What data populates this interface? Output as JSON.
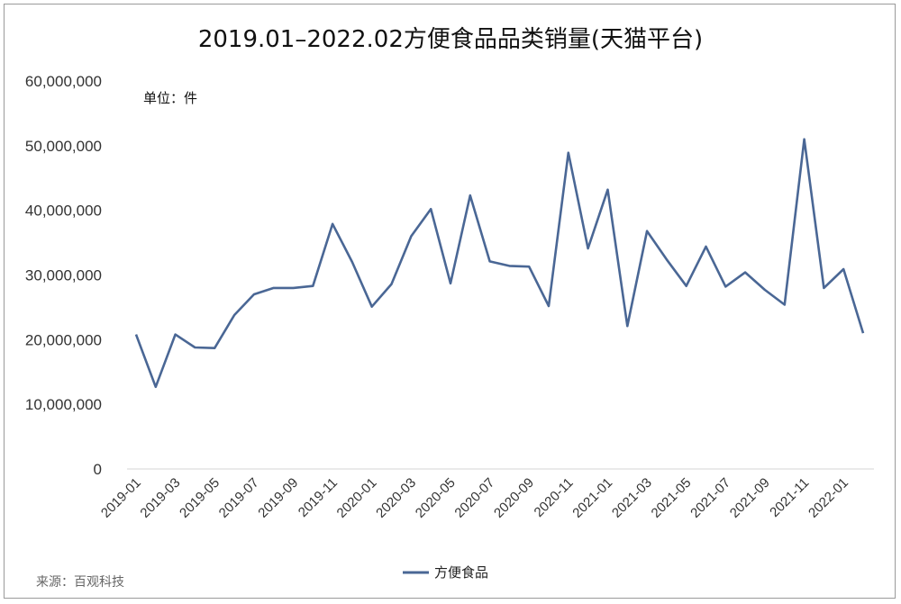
{
  "chart_data": {
    "type": "line",
    "title": "2019.01–2022.02方便食品品类销量(天猫平台)",
    "unit_label": "单位：件",
    "source": "来源：百观科技",
    "xlabel": "",
    "ylabel": "",
    "ylim": [
      0,
      60000000
    ],
    "y_ticks": [
      0,
      10000000,
      20000000,
      30000000,
      40000000,
      50000000,
      60000000
    ],
    "y_tick_labels": [
      "0",
      "10,000,000",
      "20,000,000",
      "30,000,000",
      "40,000,000",
      "50,000,000",
      "60,000,000"
    ],
    "x": [
      "2019-01",
      "2019-02",
      "2019-03",
      "2019-04",
      "2019-05",
      "2019-06",
      "2019-07",
      "2019-08",
      "2019-09",
      "2019-10",
      "2019-11",
      "2019-12",
      "2020-01",
      "2020-02",
      "2020-03",
      "2020-04",
      "2020-05",
      "2020-06",
      "2020-07",
      "2020-08",
      "2020-09",
      "2020-10",
      "2020-11",
      "2020-12",
      "2021-01",
      "2021-02",
      "2021-03",
      "2021-04",
      "2021-05",
      "2021-06",
      "2021-07",
      "2021-08",
      "2021-09",
      "2021-10",
      "2021-11",
      "2021-12",
      "2022-01",
      "2022-02"
    ],
    "x_tick_labels": [
      "2019-01",
      "2019-03",
      "2019-05",
      "2019-07",
      "2019-09",
      "2019-11",
      "2020-01",
      "2020-03",
      "2020-05",
      "2020-07",
      "2020-09",
      "2020-11",
      "2021-01",
      "2021-03",
      "2021-05",
      "2021-07",
      "2021-09",
      "2021-11",
      "2022-01"
    ],
    "series": [
      {
        "name": "方便食品",
        "color": "#4a6795",
        "values": [
          20800000,
          12700000,
          20800000,
          18800000,
          18700000,
          23800000,
          27000000,
          28000000,
          28000000,
          28300000,
          37900000,
          32000000,
          25100000,
          28600000,
          36000000,
          40200000,
          28700000,
          42300000,
          32100000,
          31400000,
          31300000,
          25200000,
          48900000,
          34100000,
          43200000,
          22100000,
          36800000,
          32400000,
          28300000,
          34400000,
          28200000,
          30400000,
          27700000,
          25400000,
          51000000,
          28000000,
          30900000,
          21000000
        ]
      }
    ],
    "grid": false,
    "legend_position": "bottom"
  }
}
